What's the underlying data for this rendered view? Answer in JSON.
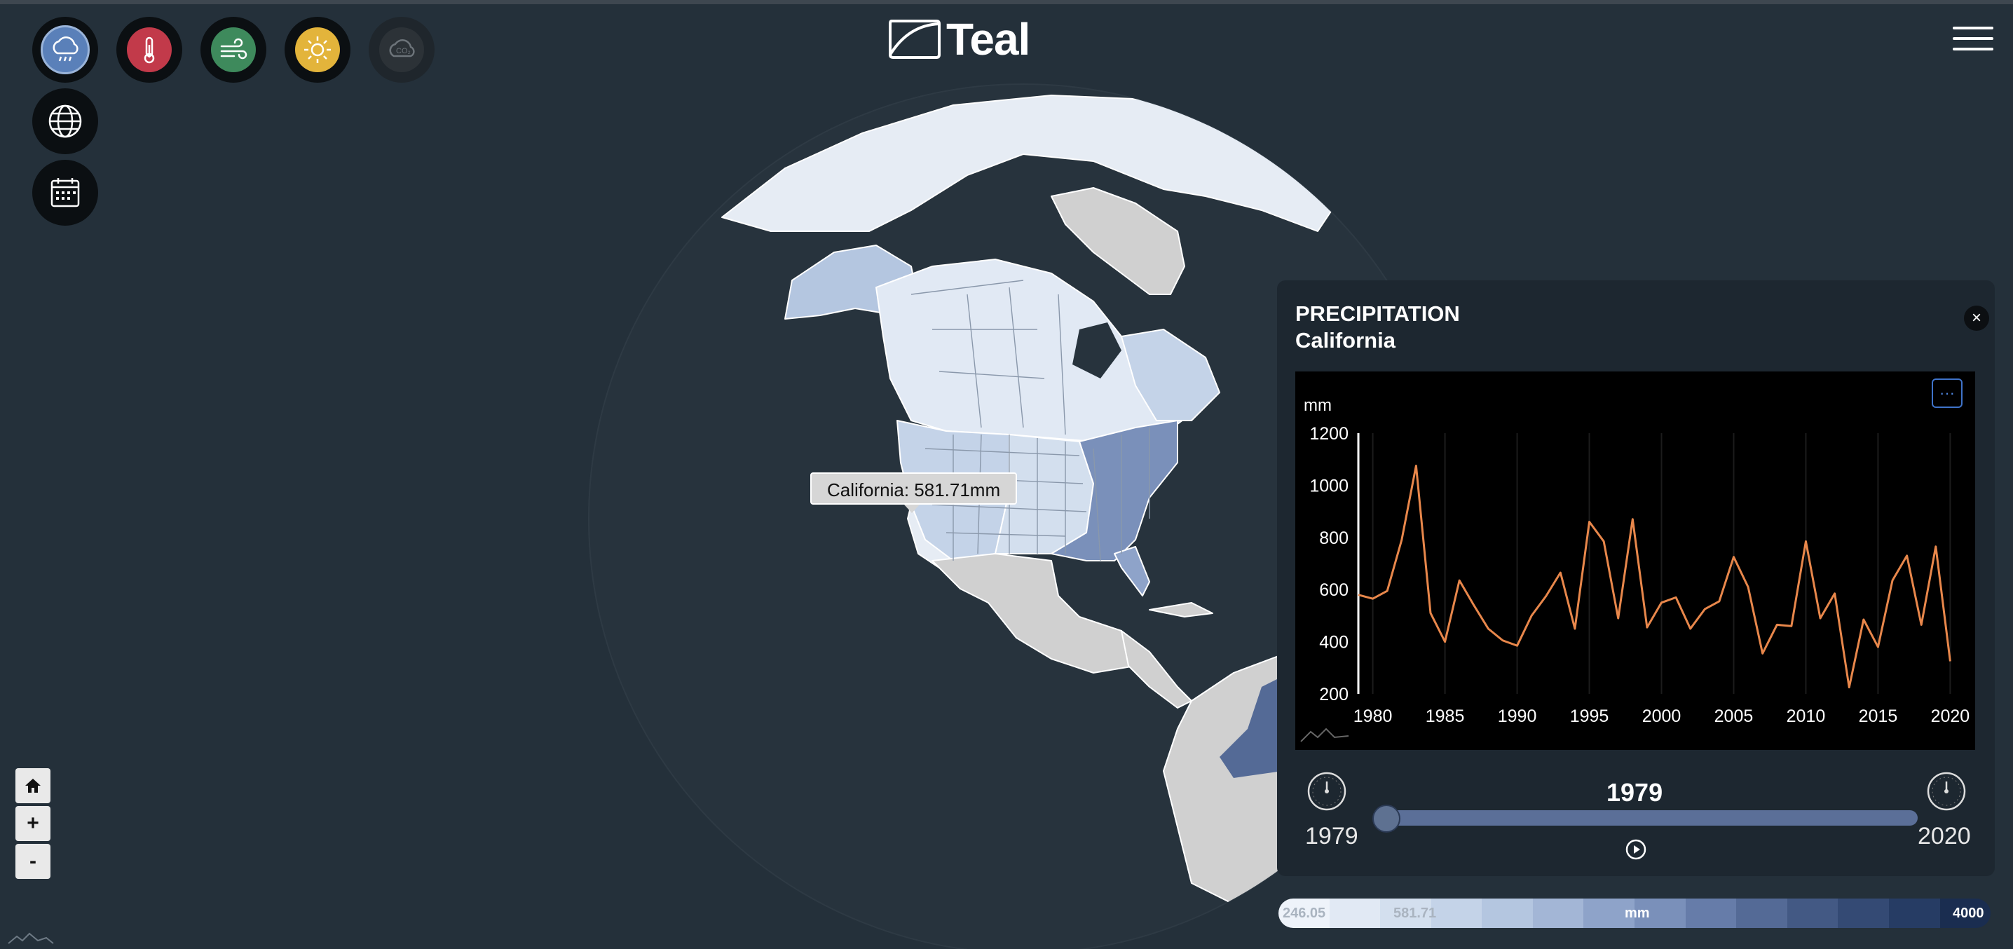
{
  "app": {
    "name": "Teal"
  },
  "layers": [
    {
      "name": "precipitation",
      "icon": "cloud-rain-icon",
      "color": "#5a80b9",
      "active": true
    },
    {
      "name": "temperature",
      "icon": "thermometer-icon",
      "color": "#c23a4a"
    },
    {
      "name": "wind",
      "icon": "wind-icon",
      "color": "#3e8a5c"
    },
    {
      "name": "sunshine",
      "icon": "sun-icon",
      "color": "#e3b43b"
    },
    {
      "name": "co2",
      "icon": "co2-cloud-icon",
      "color": "#2c3237"
    },
    {
      "name": "globe-view",
      "icon": "globe-icon"
    },
    {
      "name": "calendar",
      "icon": "calendar-icon"
    }
  ],
  "map": {
    "tooltip": "California: 581.71mm",
    "zoom": {
      "home_icon": "home-icon",
      "zoom_in": "+",
      "zoom_out": "-"
    }
  },
  "panel": {
    "title": "PRECIPITATION",
    "subtitle": "California",
    "close_label": "×",
    "more_label": "···"
  },
  "chart_data": {
    "type": "line",
    "ylabel": "mm",
    "ylim": [
      200,
      1200
    ],
    "yticks": [
      "1200",
      "1000",
      "800",
      "600",
      "400",
      "200"
    ],
    "xticks": [
      "1980",
      "1985",
      "1990",
      "1995",
      "2000",
      "2005",
      "2010",
      "2015",
      "2020"
    ],
    "xlim": [
      1979,
      2021
    ],
    "series": [
      {
        "color": "#e8874b",
        "x": [
          1979,
          1980,
          1981,
          1982,
          1983,
          1984,
          1985,
          1986,
          1987,
          1988,
          1989,
          1990,
          1991,
          1992,
          1993,
          1994,
          1995,
          1996,
          1997,
          1998,
          1999,
          2000,
          2001,
          2002,
          2003,
          2004,
          2005,
          2006,
          2007,
          2008,
          2009,
          2010,
          2011,
          2012,
          2013,
          2014,
          2015,
          2016,
          2017,
          2018,
          2019,
          2020
        ],
        "values": [
          580,
          565,
          595,
          790,
          1075,
          510,
          400,
          635,
          540,
          450,
          405,
          385,
          500,
          575,
          665,
          450,
          860,
          785,
          490,
          870,
          455,
          550,
          570,
          450,
          525,
          555,
          725,
          610,
          355,
          465,
          460,
          785,
          490,
          585,
          225,
          485,
          380,
          635,
          730,
          465,
          765,
          325
        ]
      }
    ]
  },
  "timeline": {
    "start_year": "1979",
    "end_year": "2020",
    "current_year": "1979",
    "progress": 0
  },
  "legend": {
    "min_label": "246.05",
    "current_label": "581.71",
    "unit_label": "mm",
    "max_label": "4000",
    "colors": [
      "#eef3fa",
      "#e1e9f4",
      "#d3dfee",
      "#c4d3e8",
      "#b4c6e0",
      "#a3b6d6",
      "#8ea3c9",
      "#7a90ba",
      "#667ca9",
      "#546a96",
      "#435984",
      "#344a74",
      "#263c64",
      "#1a2d50"
    ]
  }
}
